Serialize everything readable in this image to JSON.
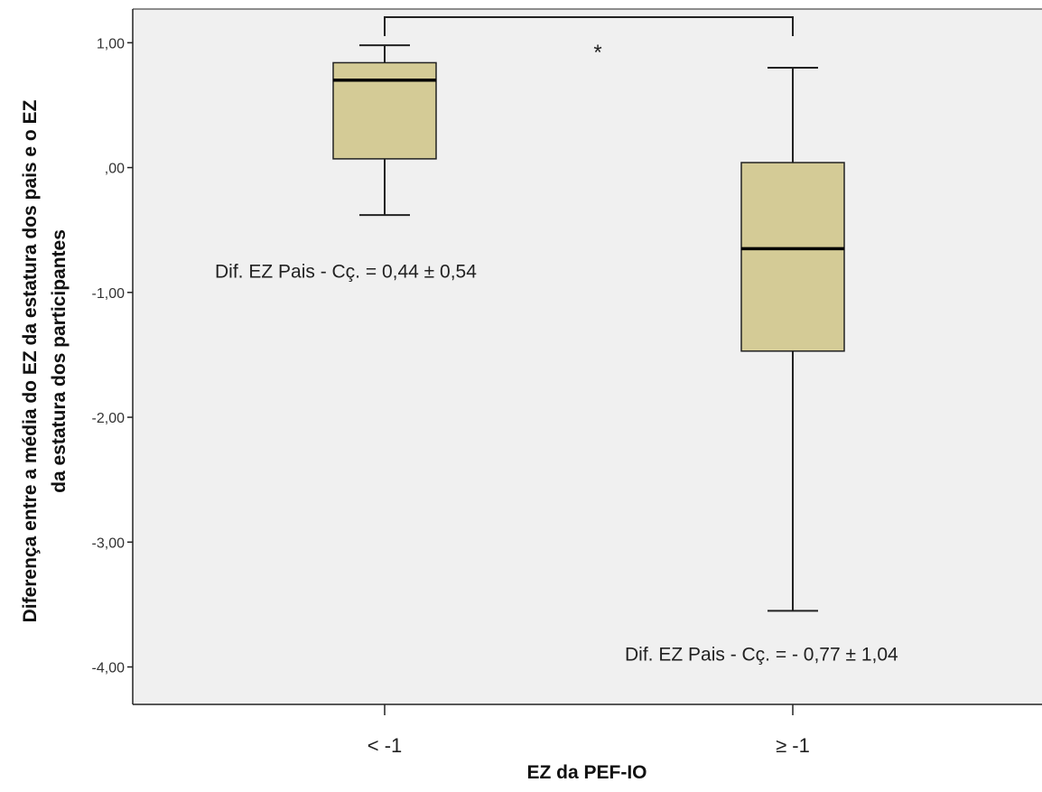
{
  "chart_data": {
    "type": "box",
    "xlabel": "EZ da PEF-IO",
    "ylabel_lines": [
      "Diferença entre a média do EZ da estatura dos pais e o EZ",
      "da estatura dos participantes"
    ],
    "ylim": [
      -4.3,
      1.27
    ],
    "yticks": [
      {
        "value": 1,
        "label": "1,00"
      },
      {
        "value": 0,
        "label": ",00"
      },
      {
        "value": -1,
        "label": "-1,00"
      },
      {
        "value": -2,
        "label": "-2,00"
      },
      {
        "value": -3,
        "label": "-3,00"
      },
      {
        "value": -4,
        "label": "-4,00"
      }
    ],
    "categories": [
      "< -1",
      "≥ -1"
    ],
    "boxes": [
      {
        "category": "< -1",
        "whisker_low": -0.38,
        "q1": 0.07,
        "median": 0.7,
        "q3": 0.84,
        "whisker_high": 0.98
      },
      {
        "category": "≥ -1",
        "whisker_low": -3.55,
        "q1": -1.47,
        "median": -0.65,
        "q3": 0.04,
        "whisker_high": 0.8
      }
    ],
    "annotations": [
      {
        "text": "Dif. EZ Pais - Cç. =  0,44 ± 0,54",
        "x": "< -1",
        "y": -0.83
      },
      {
        "text": "Dif. EZ Pais - Cç. = - 0,77 ± 1,04",
        "x": "≥ -1",
        "y": -3.9
      }
    ],
    "significance": {
      "label": "*",
      "between": [
        "< -1",
        "≥ -1"
      ]
    },
    "grid": false,
    "colors": {
      "plot_background": "#f0f0f0",
      "box_fill": "#d4cb96",
      "line": "#222222"
    }
  }
}
